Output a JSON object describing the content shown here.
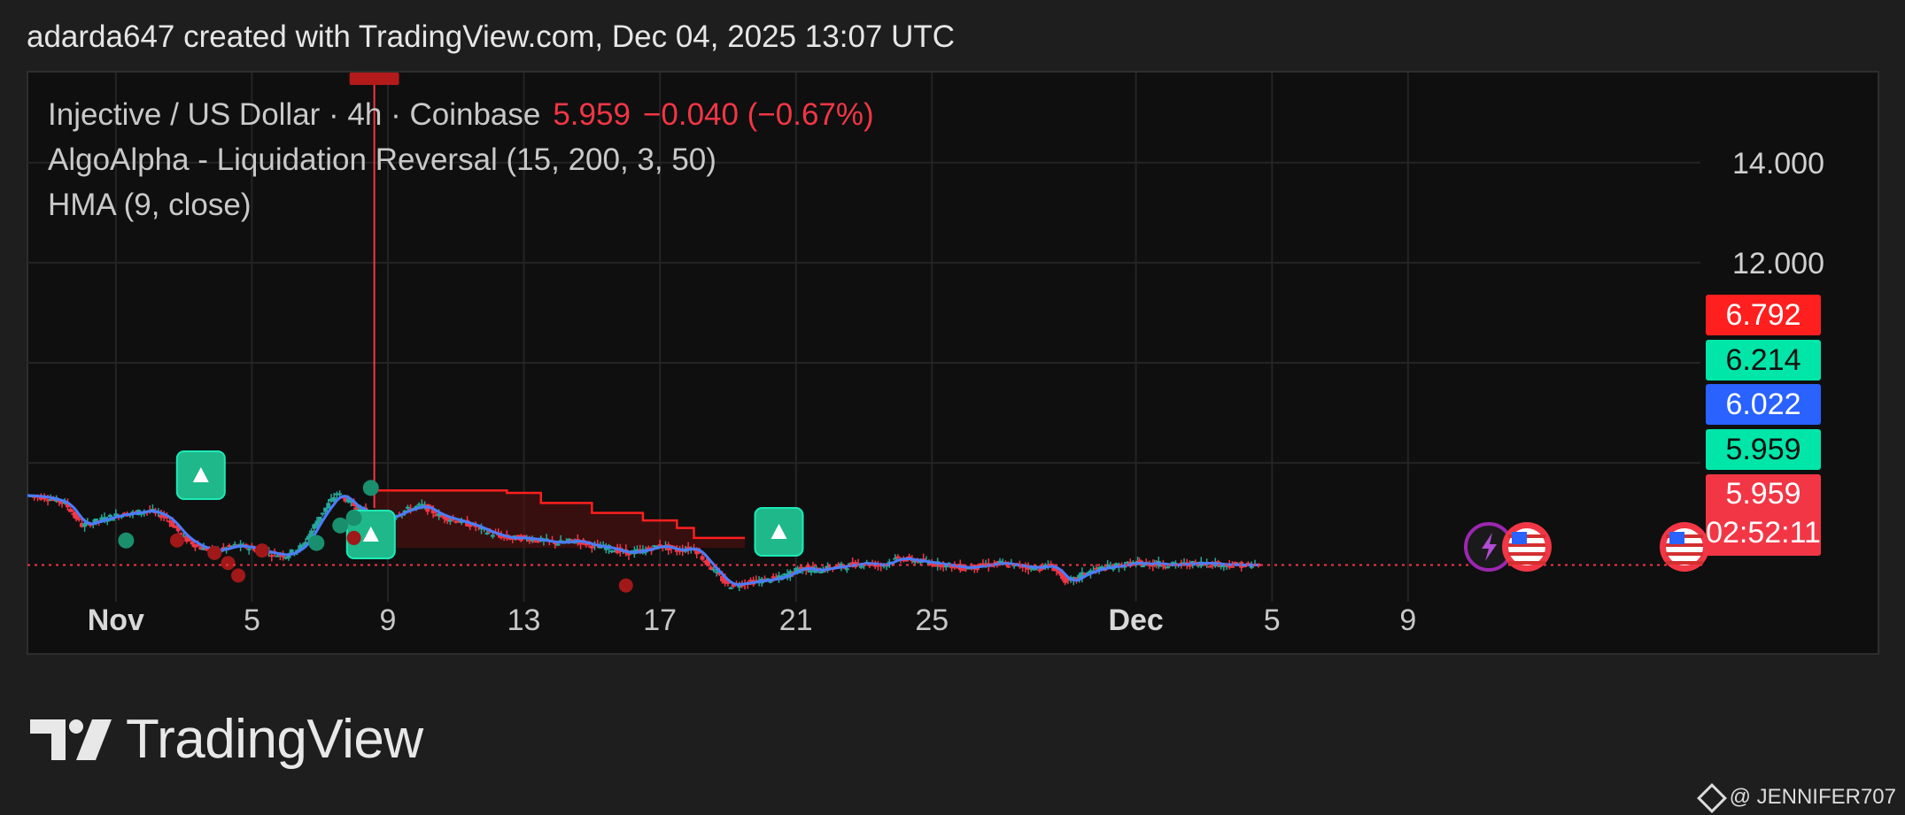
{
  "header": {
    "text": "adarda647 created with TradingView.com, Dec 04, 2025 13:07 UTC"
  },
  "legend": {
    "line1_label": "Injective / US Dollar · 4h · Coinbase",
    "line1_price": "5.959",
    "line1_change": "−0.040 (−0.67%)",
    "line2": "AlgoAlpha - Liquidation Reversal (15, 200, 3, 50)",
    "line3": "HMA (9, close)"
  },
  "price_labels": [
    {
      "text": "6.792",
      "bg": "#ff1f1f",
      "fg": "#ffffff"
    },
    {
      "text": "6.214",
      "bg": "#00e6a8",
      "fg": "#111111"
    },
    {
      "text": "6.022",
      "bg": "#2962ff",
      "fg": "#ffffff"
    },
    {
      "text": "5.959",
      "bg": "#00e6a8",
      "fg": "#111111"
    }
  ],
  "last_price_box": {
    "price": "5.959",
    "countdown": "02:52:11",
    "bg": "#f23645"
  },
  "brand": {
    "name": "TradingView"
  },
  "watermark": {
    "text": "@ JENNIFER707"
  },
  "colors": {
    "up": "#26a69a",
    "down": "#f23645",
    "hma": "#4c7cff",
    "liq_band": "#ff1f1f",
    "signal": "#1fcf9b"
  },
  "chart_data": {
    "type": "line",
    "title": "Injective / US Dollar · 4h · Coinbase",
    "yticks": [
      14.0,
      12.0
    ],
    "ytick_labels": [
      "14.000",
      "12.000"
    ],
    "ylim": [
      4.2,
      15.8
    ],
    "xtick_labels": [
      "Nov",
      "5",
      "9",
      "13",
      "17",
      "21",
      "25",
      "Dec",
      "5",
      "9"
    ],
    "xtick_days": [
      0,
      4,
      8,
      12,
      16,
      20,
      24,
      30,
      34,
      38
    ],
    "xlim": [
      -2.6,
      46.6
    ],
    "last_price": 5.959,
    "series": [
      {
        "name": "close",
        "x": [
          -2.6,
          -2.0,
          -1.5,
          -1.0,
          -0.5,
          0.0,
          0.5,
          1.0,
          1.5,
          2.0,
          2.5,
          3.0,
          3.5,
          4.0,
          4.5,
          5.0,
          5.5,
          6.0,
          6.5,
          7.0,
          7.3,
          7.6,
          8.0,
          8.5,
          9.0,
          9.5,
          10.0,
          10.5,
          11.0,
          11.5,
          12.0,
          12.5,
          13.0,
          13.5,
          14.0,
          14.5,
          15.0,
          15.5,
          16.0,
          16.5,
          17.0,
          17.5,
          18.0,
          18.5,
          19.0,
          19.5,
          20.0,
          20.3,
          20.6,
          21.0,
          21.5,
          22.0,
          22.5,
          23.0,
          23.5,
          24.0,
          24.5,
          25.0,
          25.5,
          26.0,
          26.5,
          27.0,
          27.5,
          28.0,
          28.5,
          29.0,
          29.5,
          30.0,
          30.3,
          30.6,
          31.0,
          31.5,
          32.0,
          32.5,
          33.0,
          33.6
        ],
        "values": [
          7.35,
          7.3,
          7.2,
          6.75,
          6.85,
          6.95,
          7.0,
          7.05,
          6.9,
          6.5,
          6.3,
          6.25,
          6.35,
          6.3,
          6.2,
          6.15,
          6.35,
          6.95,
          7.4,
          7.15,
          7.05,
          6.85,
          6.9,
          7.05,
          7.15,
          6.95,
          6.85,
          6.75,
          6.6,
          6.5,
          6.5,
          6.45,
          6.4,
          6.45,
          6.35,
          6.3,
          6.2,
          6.25,
          6.35,
          6.25,
          6.3,
          5.9,
          5.55,
          5.6,
          5.65,
          5.7,
          5.85,
          5.9,
          5.85,
          5.9,
          5.95,
          6.0,
          5.95,
          6.1,
          6.05,
          6.0,
          5.95,
          5.9,
          5.95,
          6.0,
          5.95,
          5.9,
          5.95,
          5.6,
          5.8,
          5.9,
          5.95,
          6.0,
          5.98,
          5.99,
          5.96,
          5.98,
          6.0,
          5.97,
          5.96,
          5.959
        ]
      },
      {
        "name": "liquidation band",
        "x": [
          7.6,
          9.0,
          10.0,
          11.0,
          11.5,
          12.5,
          14.0,
          15.5,
          16.5,
          17.0,
          18.5
        ],
        "values": [
          7.45,
          7.45,
          7.45,
          7.45,
          7.4,
          7.2,
          7.0,
          6.85,
          6.7,
          6.5,
          6.5
        ]
      }
    ]
  }
}
